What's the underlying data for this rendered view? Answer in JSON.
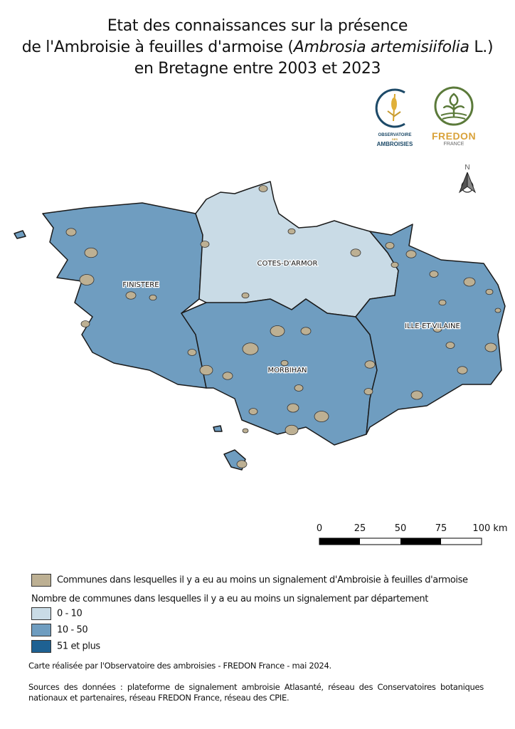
{
  "title": {
    "line1": "Etat des connaissances sur la présence",
    "line2_prefix": "de l'Ambroisie à feuilles d'armoise (",
    "line2_italic": "Ambrosia artemisiifolia",
    "line2_suffix": " L.)",
    "line3": "en Bretagne entre 2003 et 2023"
  },
  "logos": {
    "observatoire": {
      "line1": "OBSERVATOIRE",
      "line2": "DES",
      "line3": "AMBROISIES"
    },
    "fredon": {
      "line1": "FREDON",
      "line2": "FRANCE"
    }
  },
  "north_arrow": "N",
  "departments": [
    {
      "name": "FINISTERE",
      "class": "10 - 50",
      "color": "#6f9dc0"
    },
    {
      "name": "COTES-D'ARMOR",
      "class": "0 - 10",
      "color": "#c9dbe6"
    },
    {
      "name": "MORBIHAN",
      "class": "10 - 50",
      "color": "#6f9dc0"
    },
    {
      "name": "ILLE-ET-VILAINE",
      "class": "10 - 50",
      "color": "#6f9dc0"
    }
  ],
  "scale_bar": {
    "ticks": [
      "0",
      "25",
      "50",
      "75",
      "100 km"
    ]
  },
  "legend": {
    "communes_label": "Communes dans lesquelles il y a eu au moins un signalement d'Ambroisie à feuilles d'armoise",
    "communes_color": "#bdb093",
    "classes_title": "Nombre de communes dans lesquelles il y a eu au moins un signalement par département",
    "classes": [
      {
        "label": "0 - 10",
        "color": "#c9dbe6"
      },
      {
        "label": "10 - 50",
        "color": "#6f9dc0"
      },
      {
        "label": "51 et plus",
        "color": "#1e6192"
      }
    ]
  },
  "credits": "Carte réalisée par l'Observatoire des ambroisies - FREDON France - mai 2024.",
  "sources": "Sources des données : plateforme de signalement ambroisie Atlasanté, réseau des Conservatoires botaniques nationaux et partenaires, réseau FREDON France, réseau des CPIE."
}
